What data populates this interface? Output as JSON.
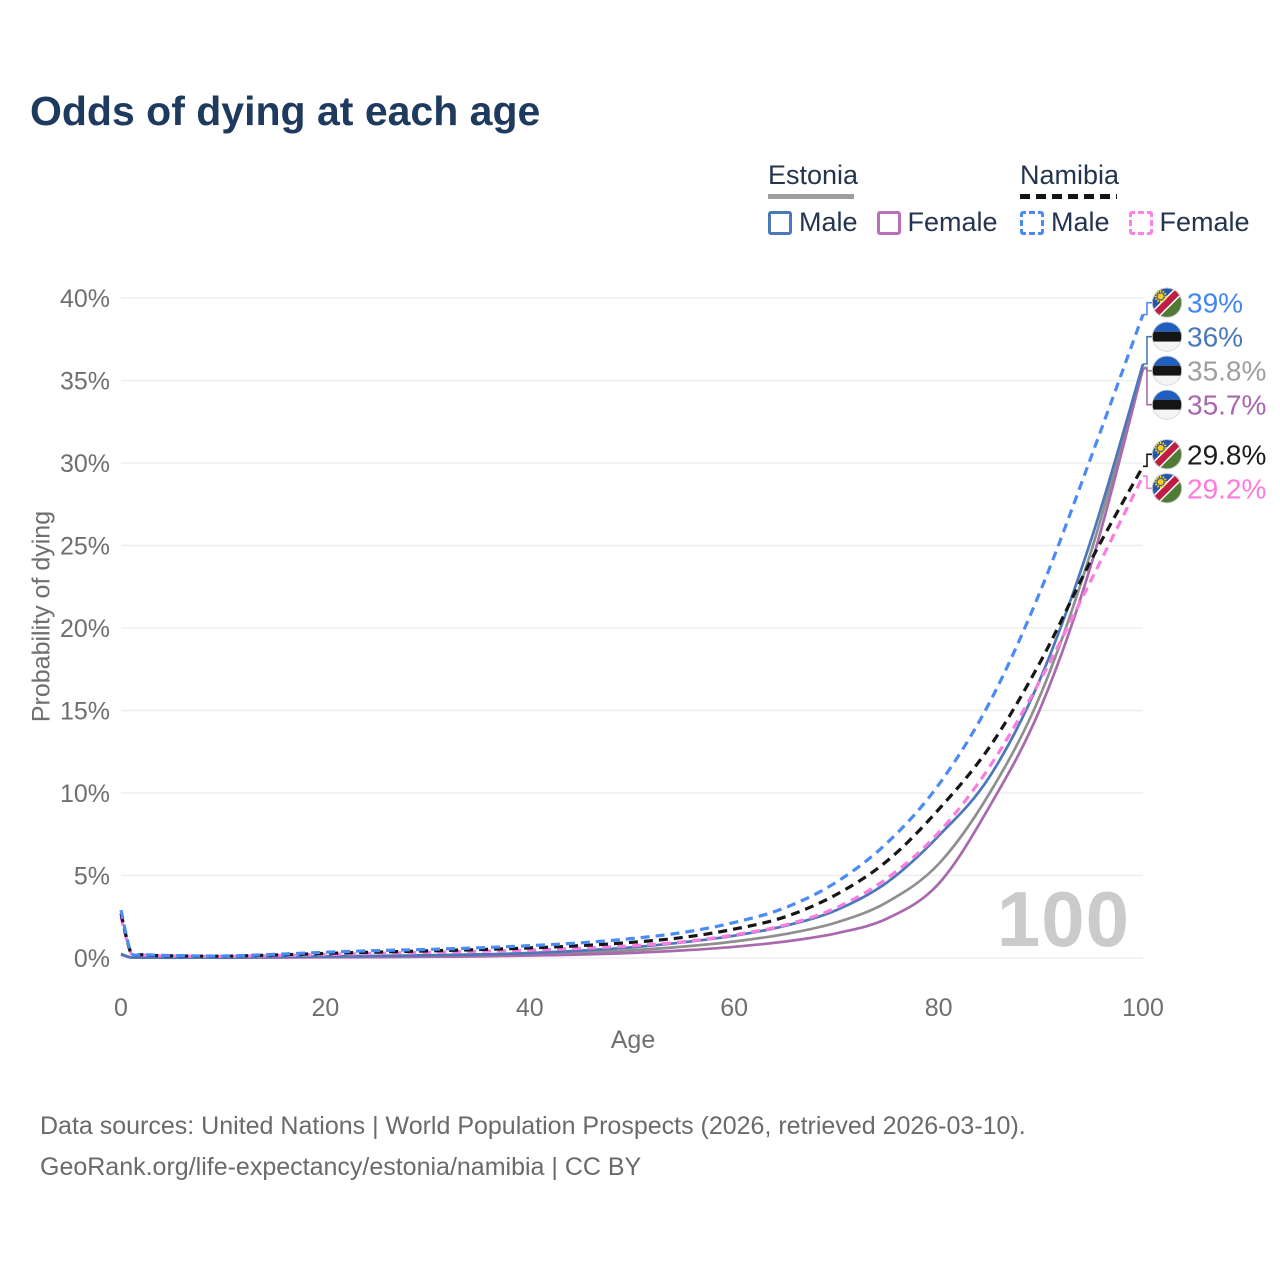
{
  "title": "Odds of dying at each age",
  "watermark": "100",
  "legend": {
    "groups": [
      {
        "country": "Estonia",
        "line_style": "solid",
        "underline_color": "#9e9e9e",
        "items": [
          {
            "label": "Male",
            "color": "#4a78b8"
          },
          {
            "label": "Female",
            "color": "#bb6fbb"
          }
        ]
      },
      {
        "country": "Namibia",
        "line_style": "dashed",
        "underline_color": "#141414",
        "items": [
          {
            "label": "Male",
            "color": "#4b8bf5"
          },
          {
            "label": "Female",
            "color": "#ff80e0"
          }
        ]
      }
    ]
  },
  "footer": {
    "line1": "Data sources: United Nations | World Population Prospects (2026, retrieved 2026-03-10).",
    "line2": "GeoRank.org/life-expectancy/estonia/namibia | CC BY"
  },
  "chart_data": {
    "type": "line",
    "title": "Odds of dying at each age",
    "xlabel": "Age",
    "ylabel": "Probability of dying",
    "xlim": [
      0,
      100
    ],
    "ylim": [
      0,
      40
    ],
    "grid": "horizontal",
    "legend_position": "top-right",
    "xticks": [
      {
        "v": 0,
        "label": "0"
      },
      {
        "v": 20,
        "label": "20"
      },
      {
        "v": 40,
        "label": "40"
      },
      {
        "v": 60,
        "label": "60"
      },
      {
        "v": 80,
        "label": "80"
      },
      {
        "v": 100,
        "label": "100"
      }
    ],
    "yticks": [
      {
        "v": 0,
        "label": "0%"
      },
      {
        "v": 5,
        "label": "5%"
      },
      {
        "v": 10,
        "label": "10%"
      },
      {
        "v": 15,
        "label": "15%"
      },
      {
        "v": 20,
        "label": "20%"
      },
      {
        "v": 25,
        "label": "25%"
      },
      {
        "v": 30,
        "label": "30%"
      },
      {
        "v": 35,
        "label": "35%"
      },
      {
        "v": 40,
        "label": "40%"
      }
    ],
    "x": [
      0,
      1,
      2,
      3,
      5,
      10,
      15,
      20,
      25,
      30,
      35,
      40,
      45,
      50,
      55,
      60,
      65,
      70,
      75,
      80,
      85,
      90,
      95,
      100
    ],
    "series": [
      {
        "id": "estonia-both",
        "country": "Estonia",
        "sex": "Both",
        "flag": "estonia",
        "color": "#8f8f8f",
        "dash": "solid",
        "z": 1,
        "end_label": "35.8%",
        "label_color": "#9e9e9e",
        "values": [
          0.22,
          0.03,
          0.025,
          0.022,
          0.018,
          0.018,
          0.045,
          0.07,
          0.09,
          0.12,
          0.16,
          0.22,
          0.32,
          0.47,
          0.69,
          1.0,
          1.45,
          2.15,
          3.4,
          5.7,
          10.0,
          16.0,
          24.8,
          35.8
        ]
      },
      {
        "id": "estonia-female",
        "country": "Estonia",
        "sex": "Female",
        "flag": "estonia",
        "color": "#a86aad",
        "dash": "solid",
        "z": 2,
        "end_label": "35.7%",
        "label_color": "#a866ad",
        "values": [
          0.2,
          0.025,
          0.02,
          0.018,
          0.015,
          0.015,
          0.03,
          0.04,
          0.05,
          0.07,
          0.1,
          0.15,
          0.21,
          0.31,
          0.46,
          0.68,
          1.0,
          1.5,
          2.4,
          4.5,
          9.2,
          15.2,
          24.0,
          35.7
        ]
      },
      {
        "id": "estonia-male",
        "country": "Estonia",
        "sex": "Male",
        "flag": "estonia",
        "color": "#4a78b8",
        "dash": "solid",
        "z": 3,
        "end_label": "36%",
        "label_color": "#4a78b8",
        "values": [
          0.25,
          0.035,
          0.03,
          0.025,
          0.02,
          0.02,
          0.06,
          0.1,
          0.13,
          0.17,
          0.22,
          0.3,
          0.45,
          0.65,
          0.95,
          1.35,
          1.95,
          2.9,
          4.6,
          7.4,
          11.0,
          17.0,
          25.5,
          36.0
        ]
      },
      {
        "id": "namibia-female",
        "country": "Namibia",
        "sex": "Female",
        "flag": "namibia",
        "color": "#fb7ce0",
        "dash": "dashed",
        "z": 4,
        "end_label": "29.2%",
        "label_color": "#ff78de",
        "values": [
          2.5,
          0.26,
          0.18,
          0.15,
          0.12,
          0.1,
          0.14,
          0.21,
          0.28,
          0.34,
          0.41,
          0.48,
          0.59,
          0.74,
          0.98,
          1.4,
          2.0,
          3.05,
          4.85,
          7.6,
          11.6,
          16.9,
          23.0,
          29.2
        ]
      },
      {
        "id": "namibia-both",
        "country": "Namibia",
        "sex": "Both",
        "flag": "namibia",
        "color": "#161616",
        "dash": "dashed",
        "z": 5,
        "end_label": "29.8%",
        "label_color": "#1c1c1c",
        "values": [
          2.7,
          0.28,
          0.2,
          0.16,
          0.13,
          0.11,
          0.18,
          0.28,
          0.36,
          0.43,
          0.51,
          0.61,
          0.75,
          0.95,
          1.25,
          1.75,
          2.5,
          3.85,
          5.9,
          9.0,
          12.8,
          18.0,
          24.2,
          29.8
        ]
      },
      {
        "id": "namibia-male",
        "country": "Namibia",
        "sex": "Male",
        "flag": "namibia",
        "color": "#4b8bf5",
        "dash": "dashed",
        "z": 6,
        "end_label": "39%",
        "label_color": "#4285f4",
        "values": [
          2.9,
          0.3,
          0.22,
          0.18,
          0.15,
          0.12,
          0.22,
          0.35,
          0.45,
          0.52,
          0.62,
          0.75,
          0.92,
          1.18,
          1.55,
          2.15,
          3.05,
          4.6,
          7.0,
          10.5,
          15.5,
          22.3,
          30.5,
          39.0
        ]
      }
    ]
  }
}
